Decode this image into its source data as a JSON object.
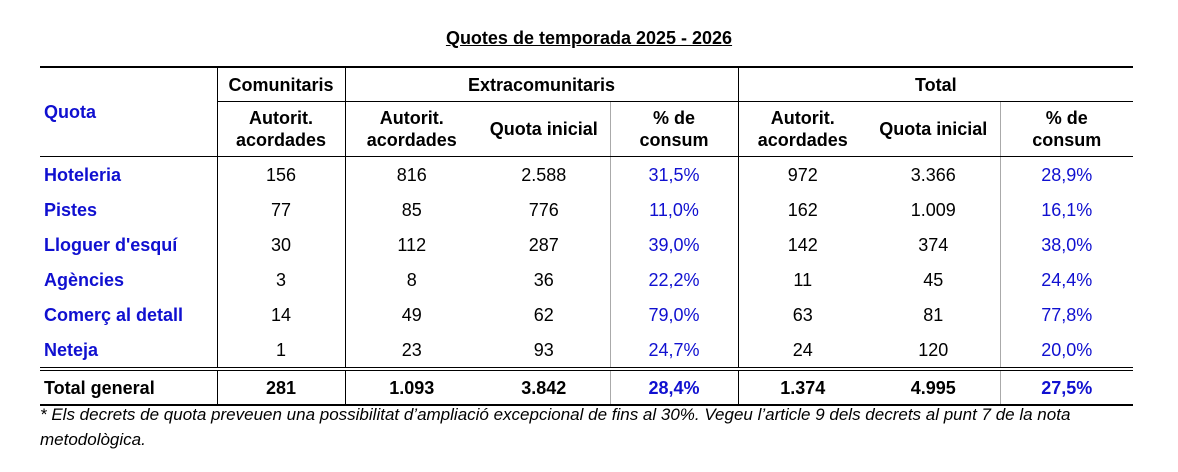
{
  "title": "Quotes de temporada 2025 - 2026",
  "table": {
    "header": {
      "quota": "Quota",
      "groups": [
        "Comunitaris",
        "Extracomunitaris",
        "Total"
      ],
      "columns": [
        "Autorit.\nacordades",
        "Autorit.\nacordades",
        "Quota inicial",
        "% de\nconsum",
        "Autorit.\nacordades",
        "Quota inicial",
        "% de\nconsum"
      ]
    },
    "rows": [
      [
        "Hoteleria",
        "156",
        "816",
        "2.588",
        "31,5%",
        "972",
        "3.366",
        "28,9%"
      ],
      [
        "Pistes",
        "77",
        "85",
        "776",
        "11,0%",
        "162",
        "1.009",
        "16,1%"
      ],
      [
        "Lloguer d'esquí",
        "30",
        "112",
        "287",
        "39,0%",
        "142",
        "374",
        "38,0%"
      ],
      [
        "Agències",
        "3",
        "8",
        "36",
        "22,2%",
        "11",
        "45",
        "24,4%"
      ],
      [
        "Comerç al detall",
        "14",
        "49",
        "62",
        "79,0%",
        "63",
        "81",
        "77,8%"
      ],
      [
        "Neteja",
        "1",
        "23",
        "93",
        "24,7%",
        "24",
        "120",
        "20,0%"
      ]
    ],
    "total": [
      "Total general",
      "281",
      "1.093",
      "3.842",
      "28,4%",
      "1.374",
      "4.995",
      "27,5%"
    ]
  },
  "footnote": "* Els decrets de quota preveuen una possibilitat d’ampliació excepcional de fins al 30%. Vegeu l’article 9 dels decrets al punt 7 de la nota metodològica."
}
